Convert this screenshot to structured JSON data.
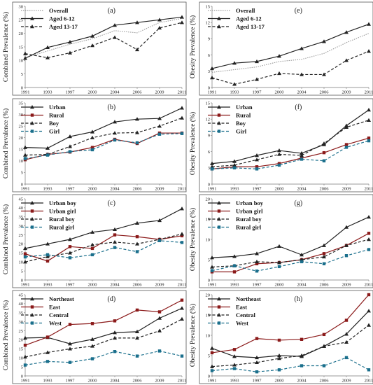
{
  "chart_data": [
    {
      "type": "line",
      "panel_label": "(a)",
      "ylabel": "Combined Prevalence (%)",
      "ylim": [
        0,
        30
      ],
      "yticks": [
        0,
        5,
        10,
        15,
        20,
        25,
        30
      ],
      "x": [
        "1991",
        "1993",
        "1997",
        "2000",
        "2004",
        "2006",
        "2009",
        "2011"
      ],
      "legend_position": "top-left",
      "series": [
        {
          "name": "Overall",
          "style": "dotted",
          "marker": "none",
          "color": "#9a9a9a",
          "values": [
            11,
            13.5,
            16,
            18,
            21,
            20.2,
            24,
            25.5
          ]
        },
        {
          "name": "Aged 6-12",
          "style": "solid",
          "marker": "triangle",
          "color": "#222222",
          "values": [
            10.8,
            14.8,
            16.8,
            19,
            23,
            24,
            25,
            26
          ]
        },
        {
          "name": "Aged 13-17",
          "style": "dashed",
          "marker": "triangle",
          "color": "#222222",
          "values": [
            12.5,
            11,
            12.8,
            15.5,
            18.5,
            14,
            22,
            24
          ]
        }
      ]
    },
    {
      "type": "line",
      "panel_label": "(e)",
      "ylabel": "Obesity Prevalence (%)",
      "ylim": [
        0,
        15
      ],
      "yticks": [
        0,
        3,
        6,
        9,
        12,
        15
      ],
      "x": [
        "1991",
        "1993",
        "1997",
        "2000",
        "2004",
        "2006",
        "2009",
        "2011"
      ],
      "legend_position": "top-left",
      "series": [
        {
          "name": "Overall",
          "style": "dotted",
          "marker": "none",
          "color": "#9a9a9a",
          "values": [
            2.8,
            3.3,
            3.8,
            4.8,
            5.2,
            6.3,
            8.3,
            10
          ]
        },
        {
          "name": "Aged 6-12",
          "style": "solid",
          "marker": "triangle",
          "color": "#222222",
          "values": [
            3.5,
            4.5,
            4.8,
            5.8,
            7.2,
            8.5,
            10.2,
            11.7
          ]
        },
        {
          "name": "Aged 13-17",
          "style": "dashed",
          "marker": "triangle",
          "color": "#222222",
          "values": [
            1.8,
            0.6,
            1.5,
            2.6,
            2.4,
            2.4,
            5,
            6.7
          ]
        }
      ]
    },
    {
      "type": "line",
      "panel_label": "(b)",
      "ylabel": "Combined Prevalence (%)",
      "ylim": [
        0,
        35
      ],
      "yticks": [
        0,
        5,
        10,
        15,
        20,
        25,
        30,
        35
      ],
      "x": [
        "1991",
        "1993",
        "1997",
        "2000",
        "2004",
        "2006",
        "2009",
        "2011"
      ],
      "legend_position": "top-left",
      "series": [
        {
          "name": "Urban",
          "style": "solid",
          "marker": "triangle",
          "color": "#222222",
          "values": [
            15.8,
            15.5,
            20.5,
            22.5,
            26.8,
            28,
            28.3,
            32.8
          ]
        },
        {
          "name": "Rural",
          "style": "solid",
          "marker": "square",
          "color": "#8b1a1a",
          "values": [
            10.5,
            12.8,
            13.8,
            15.8,
            19.3,
            17.5,
            22,
            22
          ]
        },
        {
          "name": "Boy",
          "style": "dashed",
          "marker": "triangle",
          "color": "#222222",
          "values": [
            12.5,
            12.8,
            16.2,
            20,
            22,
            22.2,
            25,
            28.5
          ]
        },
        {
          "name": "Girl",
          "style": "dashed",
          "marker": "square",
          "color": "#1a6f8c",
          "values": [
            11,
            12.5,
            14,
            14.8,
            19,
            17.8,
            21.5,
            21.8
          ]
        }
      ]
    },
    {
      "type": "line",
      "panel_label": "(f)",
      "ylabel": "Obesity Prevalence (%)",
      "ylim": [
        0,
        15
      ],
      "yticks": [
        0,
        3,
        6,
        9,
        12,
        15
      ],
      "x": [
        "1991",
        "1993",
        "1997",
        "2000",
        "2004",
        "2006",
        "2009",
        "2011"
      ],
      "legend_position": "top-left",
      "series": [
        {
          "name": "Urban",
          "style": "solid",
          "marker": "triangle",
          "color": "#222222",
          "values": [
            3.8,
            4.2,
            5.3,
            6.2,
            5.7,
            7.3,
            10.8,
            13.7
          ]
        },
        {
          "name": "Rural",
          "style": "solid",
          "marker": "square",
          "color": "#8b1a1a",
          "values": [
            2.8,
            3.2,
            3.2,
            3.8,
            4.8,
            5.8,
            7.3,
            8.5
          ]
        },
        {
          "name": "Boy",
          "style": "dashed",
          "marker": "triangle",
          "color": "#222222",
          "values": [
            3.2,
            3.5,
            4.5,
            5.5,
            5.3,
            7.5,
            10.5,
            11.8
          ]
        },
        {
          "name": "Girl",
          "style": "dashed",
          "marker": "square",
          "color": "#1a6f8c",
          "values": [
            2.8,
            3,
            2.8,
            3.5,
            4.6,
            4.3,
            6.8,
            8
          ]
        }
      ]
    },
    {
      "type": "line",
      "panel_label": "(c)",
      "ylabel": "Combined Prevalence (%)",
      "ylim": [
        0,
        45
      ],
      "yticks": [
        0,
        5,
        10,
        15,
        20,
        25,
        30,
        35,
        40,
        45
      ],
      "x": [
        "1991",
        "1993",
        "1997",
        "2000",
        "2004",
        "2006",
        "2009",
        "2011"
      ],
      "legend_position": "top-left",
      "series": [
        {
          "name": "Urban boy",
          "style": "solid",
          "marker": "triangle",
          "color": "#222222",
          "values": [
            17.5,
            20,
            22.5,
            26.5,
            28,
            31.5,
            33,
            39.5
          ]
        },
        {
          "name": "Urban girl",
          "style": "solid",
          "marker": "square",
          "color": "#8b1a1a",
          "values": [
            14.5,
            10.5,
            18.5,
            17.5,
            25,
            24,
            22.5,
            24.5
          ]
        },
        {
          "name": "Rural boy",
          "style": "dashed",
          "marker": "triangle",
          "color": "#222222",
          "values": [
            10,
            13,
            15,
            19.5,
            21,
            20,
            22.5,
            25.5
          ]
        },
        {
          "name": "Rural girl",
          "style": "dashed",
          "marker": "square",
          "color": "#1a6f8c",
          "values": [
            12.8,
            14,
            12.3,
            14,
            18,
            15.7,
            21.8,
            20.8
          ]
        }
      ]
    },
    {
      "type": "line",
      "panel_label": "(g)",
      "ylabel": "Obesity Prevalence (%)",
      "ylim": [
        0,
        20
      ],
      "yticks": [
        0,
        5,
        10,
        15,
        20
      ],
      "x": [
        "1991",
        "1993",
        "1997",
        "2000",
        "2004",
        "2006",
        "2009",
        "2011"
      ],
      "legend_position": "top-left",
      "series": [
        {
          "name": "Urban boy",
          "style": "solid",
          "marker": "triangle",
          "color": "#222222",
          "values": [
            5.5,
            5.8,
            6.5,
            8.3,
            6.2,
            8.5,
            13,
            15.5
          ]
        },
        {
          "name": "Urban girl",
          "style": "solid",
          "marker": "square",
          "color": "#8b1a1a",
          "values": [
            2,
            2,
            4,
            4.3,
            5,
            6.5,
            8.5,
            11.5
          ]
        },
        {
          "name": "Rural boy",
          "style": "dashed",
          "marker": "triangle",
          "color": "#222222",
          "values": [
            3.2,
            3.5,
            4.5,
            4.3,
            5,
            5.7,
            8.5,
            10
          ]
        },
        {
          "name": "Rural girl",
          "style": "dashed",
          "marker": "square",
          "color": "#1a6f8c",
          "values": [
            2.3,
            3.5,
            2.2,
            3.3,
            4.5,
            4,
            6,
            7.5
          ]
        }
      ]
    },
    {
      "type": "line",
      "panel_label": "(d)",
      "ylabel": "Combined Prevalence (%)",
      "ylim": [
        0,
        45
      ],
      "yticks": [
        0,
        5,
        10,
        15,
        20,
        25,
        30,
        35,
        40,
        45
      ],
      "x": [
        "1991",
        "1993",
        "1997",
        "2000",
        "2004",
        "2006",
        "2009",
        "2011"
      ],
      "legend_position": "top-left",
      "series": [
        {
          "name": "Northeast",
          "style": "solid",
          "marker": "triangle",
          "color": "#222222",
          "values": [
            21,
            21.3,
            17.8,
            20.3,
            24,
            24.5,
            32,
            37.5
          ]
        },
        {
          "name": "East",
          "style": "solid",
          "marker": "square",
          "color": "#8b1a1a",
          "values": [
            17,
            21.5,
            28.5,
            29,
            30.5,
            36.5,
            35.5,
            42
          ]
        },
        {
          "name": "Central",
          "style": "dashed",
          "marker": "triangle",
          "color": "#222222",
          "values": [
            10.5,
            13,
            15,
            16.5,
            21,
            21,
            25,
            31.5
          ]
        },
        {
          "name": "West",
          "style": "dashed",
          "marker": "square",
          "color": "#1a6f8c",
          "values": [
            6,
            8,
            7.5,
            9.5,
            13.5,
            11,
            13.8,
            11
          ]
        }
      ]
    },
    {
      "type": "line",
      "panel_label": "(h)",
      "ylabel": "Obesity Prevalence (%)",
      "ylim": [
        0,
        20
      ],
      "yticks": [
        0,
        5,
        10,
        15,
        20
      ],
      "x": [
        "1991",
        "1993",
        "1997",
        "2000",
        "2004",
        "2006",
        "2009",
        "2011"
      ],
      "legend_position": "top-left",
      "series": [
        {
          "name": "Northeast",
          "style": "solid",
          "marker": "triangle",
          "color": "#222222",
          "values": [
            6.8,
            4.8,
            4.5,
            5,
            4.8,
            7.3,
            10.3,
            16
          ]
        },
        {
          "name": "East",
          "style": "solid",
          "marker": "square",
          "color": "#8b1a1a",
          "values": [
            5.7,
            6.5,
            9.2,
            8.8,
            9,
            10.2,
            13.7,
            20
          ]
        },
        {
          "name": "Central",
          "style": "dashed",
          "marker": "triangle",
          "color": "#222222",
          "values": [
            2.3,
            2.7,
            3.3,
            4.3,
            5,
            7.3,
            8.3,
            12.5
          ]
        },
        {
          "name": "West",
          "style": "dashed",
          "marker": "square",
          "color": "#1a6f8c",
          "values": [
            1.3,
            1.8,
            1,
            1.5,
            2.5,
            2.5,
            4.5,
            1.5
          ]
        }
      ]
    }
  ]
}
